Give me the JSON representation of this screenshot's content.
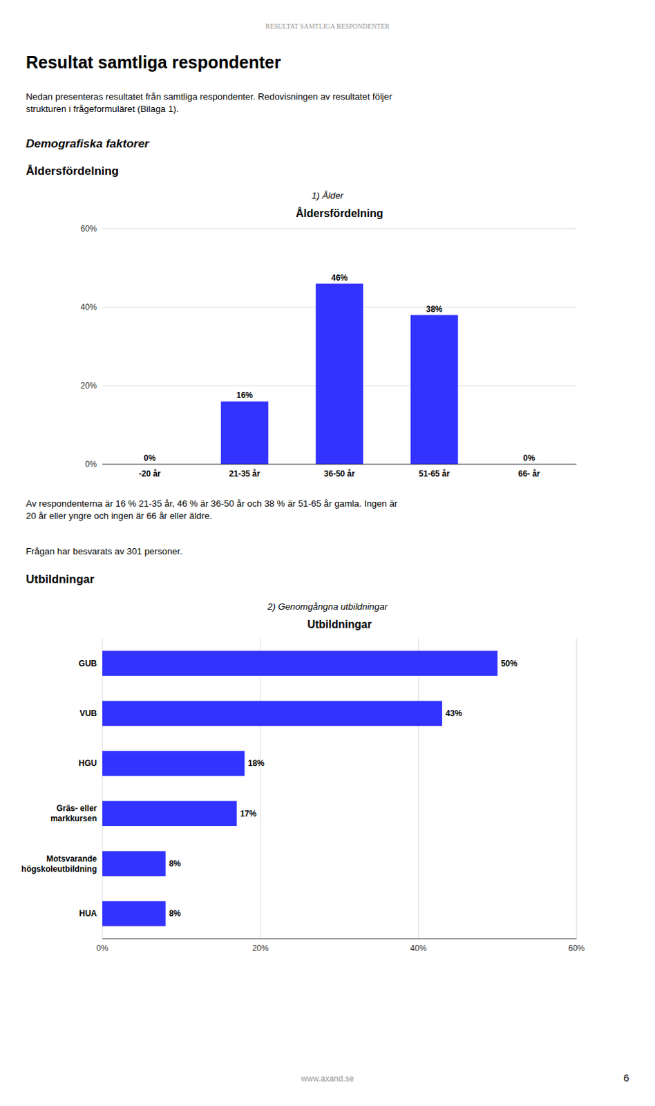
{
  "page_header": "RESULTAT SAMTLIGA RESPONDENTER",
  "main_title": "Resultat samtliga respondenter",
  "intro_text": "Nedan presenteras resultatet från samtliga respondenter. Redovisningen av resultatet följer\nstrukturen i frågeformuläret (Bilaga 1).",
  "section1_title": "Demografiska faktorer",
  "section1_sub": "Åldersfördelning",
  "section2_title": "Utbildningar",
  "footer": "www.axand.se",
  "page_number": "6",
  "chart_data": [
    {
      "type": "bar",
      "subtitle": "1) Ålder",
      "title": "Åldersfördelning",
      "categories": [
        "-20 år",
        "21-35 år",
        "36-50 år",
        "51-65 år",
        "66- år"
      ],
      "values": [
        0,
        16,
        46,
        38,
        0
      ],
      "value_labels": [
        "0%",
        "16%",
        "46%",
        "38%",
        "0%"
      ],
      "color": "#3333FF",
      "ylim": [
        0,
        60
      ],
      "yticks": [
        {
          "value": 0,
          "label": "0%"
        },
        {
          "value": 20,
          "label": "20%"
        },
        {
          "value": 40,
          "label": "40%"
        },
        {
          "value": 60,
          "label": "60%"
        }
      ],
      "grid": true,
      "data_labels": true,
      "annotations": [
        "Av respondenterna är 16 % 21-35 år, 46 % är 36-50 år och 38 % är 51-65 år gamla. Ingen är\n20 år eller yngre och ingen är 66 år eller äldre.",
        "Frågan har besvarats av 301 personer."
      ]
    },
    {
      "type": "bar",
      "orientation": "horizontal",
      "subtitle": "2) Genomgångna utbildningar",
      "title": "Utbildningar",
      "categories": [
        "GUB",
        "VUB",
        "HGU",
        "Gräs- eller\nmarkkursen",
        "Motsvarande\nhögskoleutbildning",
        "HUA"
      ],
      "values": [
        50,
        43,
        18,
        17,
        8,
        8
      ],
      "value_labels": [
        "50%",
        "43%",
        "18%",
        "17%",
        "8%",
        "8%"
      ],
      "color": "#3333FF",
      "xlim": [
        0,
        60
      ],
      "xticks": [
        {
          "value": 0,
          "label": "0%"
        },
        {
          "value": 20,
          "label": "20%"
        },
        {
          "value": 40,
          "label": "40%"
        },
        {
          "value": 60,
          "label": "60%"
        }
      ],
      "grid": true,
      "data_labels": true
    }
  ]
}
